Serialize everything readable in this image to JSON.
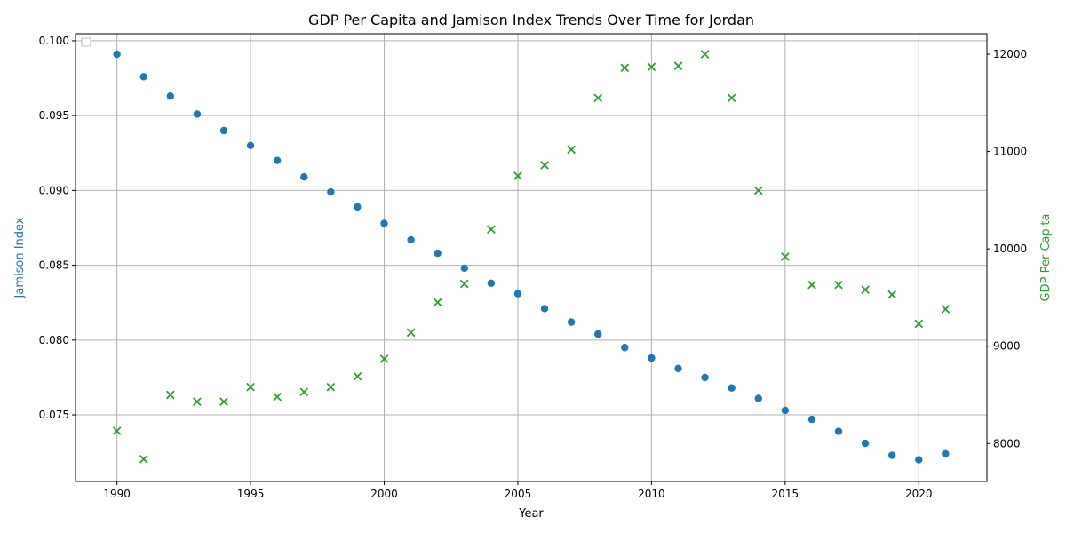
{
  "chart_data": {
    "type": "scatter",
    "title": "GDP Per Capita and Jamison Index Trends Over Time for Jordan",
    "xlabel": "Year",
    "ylabel_left": "Jamison Index",
    "ylabel_right": "GDP Per Capita",
    "x_ticks": [
      "1990",
      "1995",
      "2000",
      "2005",
      "2010",
      "2015",
      "2020"
    ],
    "y_left_ticks": [
      "0.075",
      "0.080",
      "0.085",
      "0.090",
      "0.095",
      "0.100"
    ],
    "y_right_ticks": [
      "8000",
      "9000",
      "10000",
      "11000",
      "12000"
    ],
    "xlim": [
      1988.45,
      2022.55
    ],
    "ylim_left": [
      0.07055,
      0.10047
    ],
    "ylim_right": [
      7610,
      12210
    ],
    "grid": true,
    "colors": {
      "jamison": "#1f77b4",
      "gdp": "#2ca02c"
    },
    "series": [
      {
        "axis": "left",
        "marker": "circle",
        "x": [
          1990,
          1991,
          1992,
          1993,
          1994,
          1995,
          1996,
          1997,
          1998,
          1999,
          2000,
          2001,
          2002,
          2003,
          2004,
          2005,
          2006,
          2007,
          2008,
          2009,
          2010,
          2011,
          2012,
          2013,
          2014,
          2015,
          2016,
          2017,
          2018,
          2019,
          2020,
          2021
        ],
        "values": [
          0.0991,
          0.0976,
          0.0963,
          0.0951,
          0.094,
          0.093,
          0.092,
          0.0909,
          0.0899,
          0.0889,
          0.0878,
          0.0867,
          0.0858,
          0.0848,
          0.0838,
          0.0831,
          0.0821,
          0.0812,
          0.0804,
          0.0795,
          0.0788,
          0.0781,
          0.0775,
          0.0768,
          0.0761,
          0.0753,
          0.0747,
          0.0739,
          0.0731,
          0.0723,
          0.072,
          0.0724
        ]
      },
      {
        "axis": "right",
        "marker": "x",
        "x": [
          1990,
          1991,
          1992,
          1993,
          1994,
          1995,
          1996,
          1997,
          1998,
          1999,
          2000,
          2001,
          2002,
          2003,
          2004,
          2005,
          2006,
          2007,
          2008,
          2009,
          2010,
          2011,
          2012,
          2013,
          2014,
          2015,
          2016,
          2017,
          2018,
          2019,
          2020,
          2021
        ],
        "values": [
          8130,
          7840,
          8500,
          8430,
          8430,
          8580,
          8480,
          8530,
          8580,
          8690,
          8870,
          9140,
          9450,
          9640,
          10200,
          10750,
          10860,
          11020,
          11550,
          11860,
          11870,
          11880,
          12000,
          11550,
          10600,
          9920,
          9630,
          9630,
          9580,
          9530,
          9230,
          9380
        ]
      }
    ]
  }
}
